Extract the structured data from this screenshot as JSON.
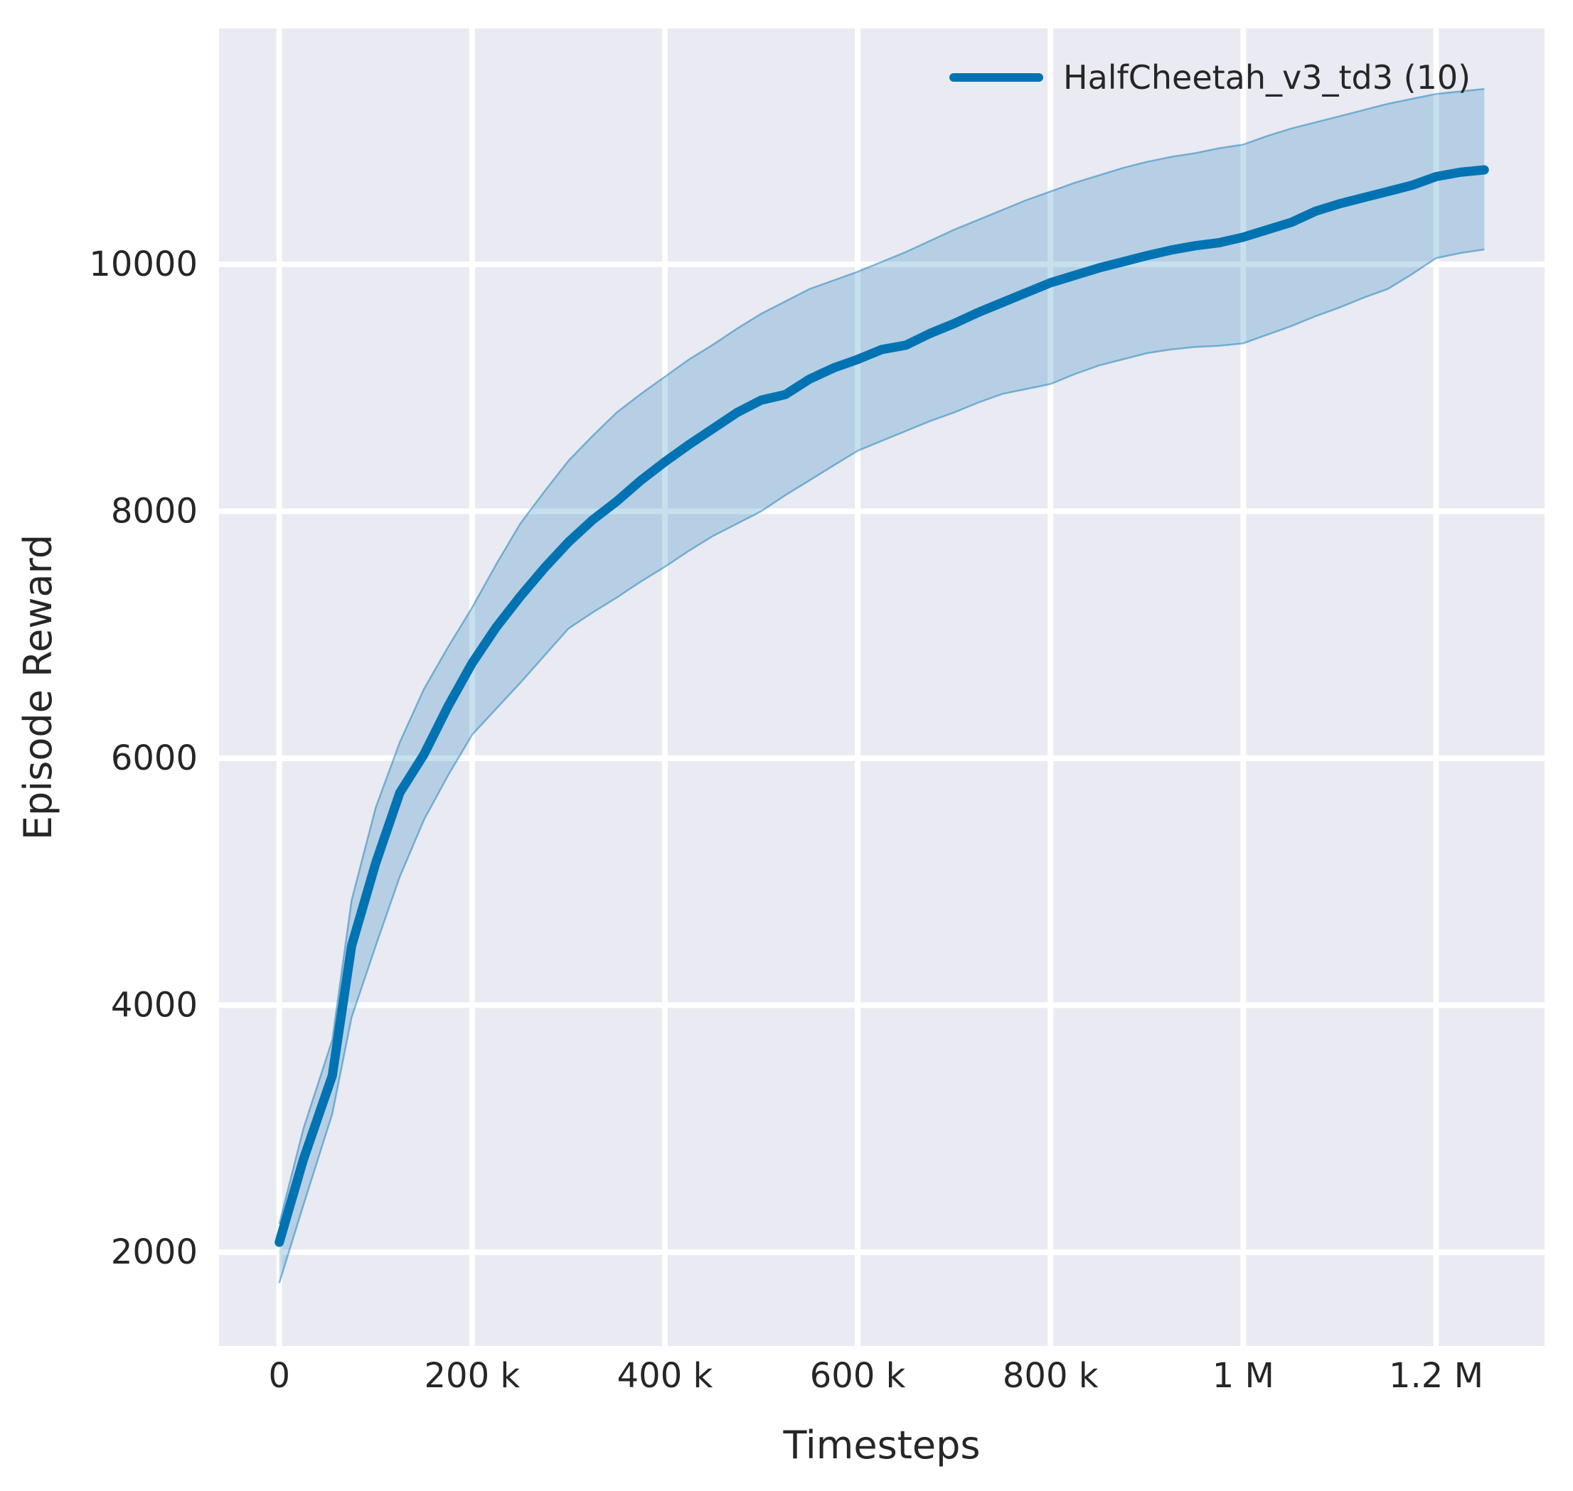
{
  "chart_data": {
    "type": "line",
    "title": "",
    "xlabel": "Timesteps",
    "ylabel": "Episode Reward",
    "grid": true,
    "legend_position": "upper right",
    "legend": [
      {
        "label": "HalfCheetah_v3_td3 (10)",
        "color": "#0173b2"
      }
    ],
    "xlim": [
      -62500,
      1312500
    ],
    "ylim": [
      1240,
      11910
    ],
    "x_ticks": {
      "values": [
        0,
        200000,
        400000,
        600000,
        800000,
        1000000,
        1200000
      ],
      "labels": [
        "0",
        "200 k",
        "400 k",
        "600 k",
        "800 k",
        "1 M",
        "1.2 M"
      ]
    },
    "y_ticks": {
      "values": [
        2000,
        4000,
        6000,
        8000,
        10000
      ],
      "labels": [
        "2000",
        "4000",
        "6000",
        "8000",
        "10000"
      ]
    },
    "series": [
      {
        "name": "HalfCheetah_v3_td3 (10)",
        "color": "#0173b2",
        "x": [
          0,
          25000,
          55000,
          75000,
          100000,
          125000,
          150000,
          175000,
          200000,
          225000,
          250000,
          275000,
          300000,
          325000,
          350000,
          375000,
          400000,
          425000,
          450000,
          475000,
          500000,
          525000,
          550000,
          575000,
          600000,
          625000,
          650000,
          675000,
          700000,
          725000,
          750000,
          775000,
          800000,
          825000,
          850000,
          875000,
          900000,
          925000,
          950000,
          975000,
          1000000,
          1025000,
          1050000,
          1075000,
          1100000,
          1125000,
          1150000,
          1175000,
          1200000,
          1225000,
          1250000
        ],
        "mean": [
          2080,
          2750,
          3430,
          4480,
          5150,
          5720,
          6030,
          6420,
          6770,
          7060,
          7310,
          7540,
          7750,
          7930,
          8080,
          8250,
          8400,
          8540,
          8670,
          8800,
          8900,
          8945,
          9070,
          9160,
          9230,
          9310,
          9345,
          9440,
          9520,
          9610,
          9690,
          9770,
          9850,
          9910,
          9970,
          10020,
          10070,
          10115,
          10150,
          10175,
          10220,
          10280,
          10340,
          10430,
          10490,
          10540,
          10590,
          10640,
          10710,
          10745,
          10765
        ],
        "lower": [
          1750,
          2380,
          3120,
          3900,
          4480,
          5040,
          5500,
          5860,
          6190,
          6400,
          6610,
          6830,
          7050,
          7180,
          7300,
          7430,
          7550,
          7680,
          7800,
          7900,
          8000,
          8130,
          8250,
          8370,
          8490,
          8570,
          8650,
          8730,
          8800,
          8880,
          8950,
          8990,
          9030,
          9110,
          9180,
          9230,
          9280,
          9310,
          9330,
          9340,
          9360,
          9430,
          9500,
          9580,
          9650,
          9730,
          9800,
          9920,
          10050,
          10090,
          10120
        ],
        "upper": [
          2230,
          3000,
          3720,
          4850,
          5600,
          6130,
          6560,
          6900,
          7220,
          7570,
          7900,
          8160,
          8410,
          8610,
          8800,
          8950,
          9090,
          9230,
          9350,
          9480,
          9600,
          9700,
          9800,
          9870,
          9940,
          10020,
          10100,
          10190,
          10280,
          10360,
          10440,
          10520,
          10590,
          10660,
          10720,
          10780,
          10830,
          10870,
          10900,
          10940,
          10970,
          11040,
          11100,
          11150,
          11200,
          11250,
          11300,
          11340,
          11380,
          11400,
          11420
        ]
      }
    ],
    "colors": {
      "line": "#0173b2",
      "band_fill": "#0173b2",
      "band_fill_opacity": 0.22,
      "band_edge_opacity": 0.45,
      "plot_background": "#eaeaf2",
      "gridline": "#ffffff",
      "text": "#262626",
      "figure_background": "#ffffff"
    }
  }
}
